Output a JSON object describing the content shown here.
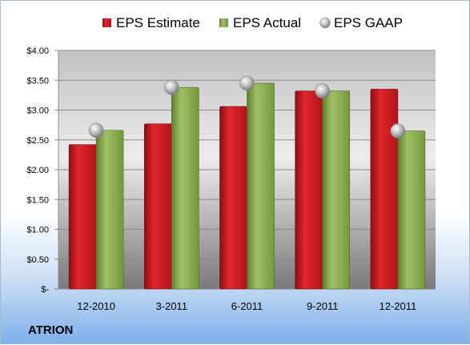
{
  "company": "ATRION",
  "colors": {
    "estimate": "#c8141c",
    "actual": "#8aad52",
    "gaap": "#b8b8b8"
  },
  "chart_data": {
    "type": "bar",
    "categories": [
      "12-2010",
      "3-2011",
      "6-2011",
      "9-2011",
      "12-2011"
    ],
    "series": [
      {
        "name": "EPS Estimate",
        "kind": "bar",
        "values": [
          2.42,
          2.77,
          3.06,
          3.32,
          3.35
        ]
      },
      {
        "name": "EPS Actual",
        "kind": "bar",
        "values": [
          2.66,
          3.38,
          3.45,
          3.32,
          2.65
        ]
      },
      {
        "name": "EPS GAAP",
        "kind": "marker",
        "values": [
          2.66,
          3.38,
          3.45,
          3.32,
          2.65
        ]
      }
    ],
    "ylim": [
      0,
      4.0
    ],
    "yticks": [
      0,
      0.5,
      1.0,
      1.5,
      2.0,
      2.5,
      3.0,
      3.5,
      4.0
    ],
    "ytick_labels": [
      "$-",
      "$0.50",
      "$1.00",
      "$1.50",
      "$2.00",
      "$2.50",
      "$3.00",
      "$3.50",
      "$4.00"
    ],
    "legend_position": "top",
    "grid": true
  }
}
